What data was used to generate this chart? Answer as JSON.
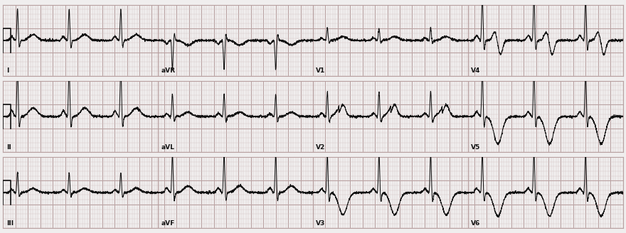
{
  "bg_color": "#f0eeee",
  "grid_minor_color": "#d4c4c4",
  "grid_major_color": "#b8a0a0",
  "ecg_color": "#111111",
  "label_color": "#111111",
  "lead_labels": [
    [
      "I",
      "aVR",
      "V1",
      "V4"
    ],
    [
      "II",
      "aVL",
      "V2",
      "V5"
    ],
    [
      "III",
      "aVF",
      "V3",
      "V6"
    ]
  ],
  "figsize": [
    8.8,
    3.28
  ],
  "dpi": 100,
  "hr": 72,
  "duration": 10.0,
  "minor_grid_s": 0.04,
  "major_grid_s": 0.2,
  "minor_grid_mv": 0.1,
  "major_grid_mv": 0.5,
  "y_range": 0.75
}
